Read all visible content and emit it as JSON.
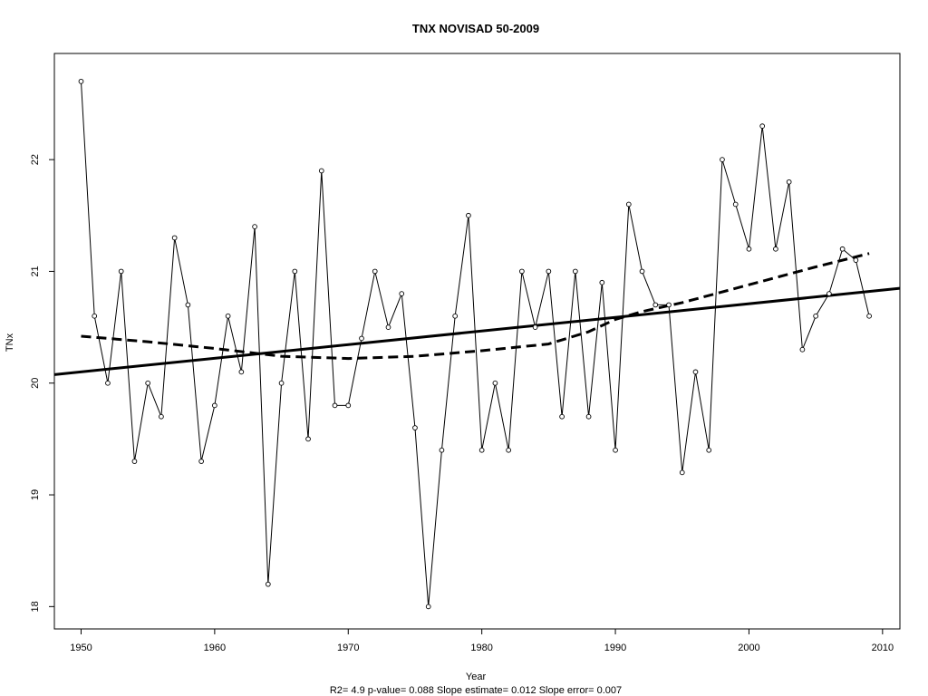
{
  "chart_data": {
    "type": "line",
    "title": "TNX    NOVISAD 50-2009",
    "xlabel": "Year",
    "ylabel": "TNx",
    "subtitle": "R2= 4.9  p-value= 0.088  Slope estimate= 0.012  Slope error= 0.007",
    "xlim": [
      1948,
      2011.3
    ],
    "ylim": [
      17.8,
      22.95
    ],
    "x_ticks": [
      1950,
      1960,
      1970,
      1980,
      1990,
      2000,
      2010
    ],
    "y_ticks": [
      18,
      19,
      20,
      21,
      22
    ],
    "grid": false,
    "series": [
      {
        "x": [
          1950,
          1951,
          1952,
          1953,
          1954,
          1955,
          1956,
          1957,
          1958,
          1959,
          1960,
          1961,
          1962,
          1963,
          1964,
          1965,
          1966,
          1967,
          1968,
          1969,
          1970,
          1971,
          1972,
          1973,
          1974,
          1975,
          1976,
          1977,
          1978,
          1979,
          1980,
          1981,
          1982,
          1983,
          1984,
          1985,
          1986,
          1987,
          1988,
          1989,
          1990,
          1991,
          1992,
          1993,
          1994,
          1995,
          1996,
          1997,
          1998,
          1999,
          2000,
          2001,
          2002,
          2003,
          2004,
          2005,
          2006,
          2007,
          2008,
          2009
        ],
        "values": [
          22.7,
          20.6,
          20.0,
          21.0,
          19.3,
          20.0,
          19.7,
          21.3,
          20.7,
          19.3,
          19.8,
          20.6,
          20.1,
          21.4,
          18.2,
          20.0,
          21.0,
          19.5,
          21.9,
          19.8,
          19.8,
          20.4,
          21.0,
          20.5,
          20.8,
          19.6,
          18.0,
          19.4,
          20.6,
          21.5,
          19.4,
          20.0,
          19.4,
          21.0,
          20.5,
          21.0,
          19.7,
          21.0,
          19.7,
          20.9,
          19.4,
          21.6,
          21.0,
          20.7,
          20.7,
          19.2,
          20.1,
          19.4,
          22.0,
          21.6,
          21.2,
          22.3,
          21.2,
          21.8,
          20.3,
          20.6,
          20.8,
          21.2,
          21.1,
          20.6
        ]
      }
    ],
    "trend_line": {
      "x": [
        1948,
        2011.3
      ],
      "values": [
        20.076,
        20.848
      ]
    },
    "smooth_curve": {
      "x": [
        1950,
        1955,
        1960,
        1965,
        1970,
        1975,
        1980,
        1985,
        1988,
        1990,
        1992,
        1995,
        2000,
        2005,
        2009
      ],
      "values": [
        20.42,
        20.37,
        20.31,
        20.24,
        20.22,
        20.24,
        20.29,
        20.35,
        20.46,
        20.57,
        20.64,
        20.72,
        20.88,
        21.04,
        21.16
      ]
    }
  }
}
